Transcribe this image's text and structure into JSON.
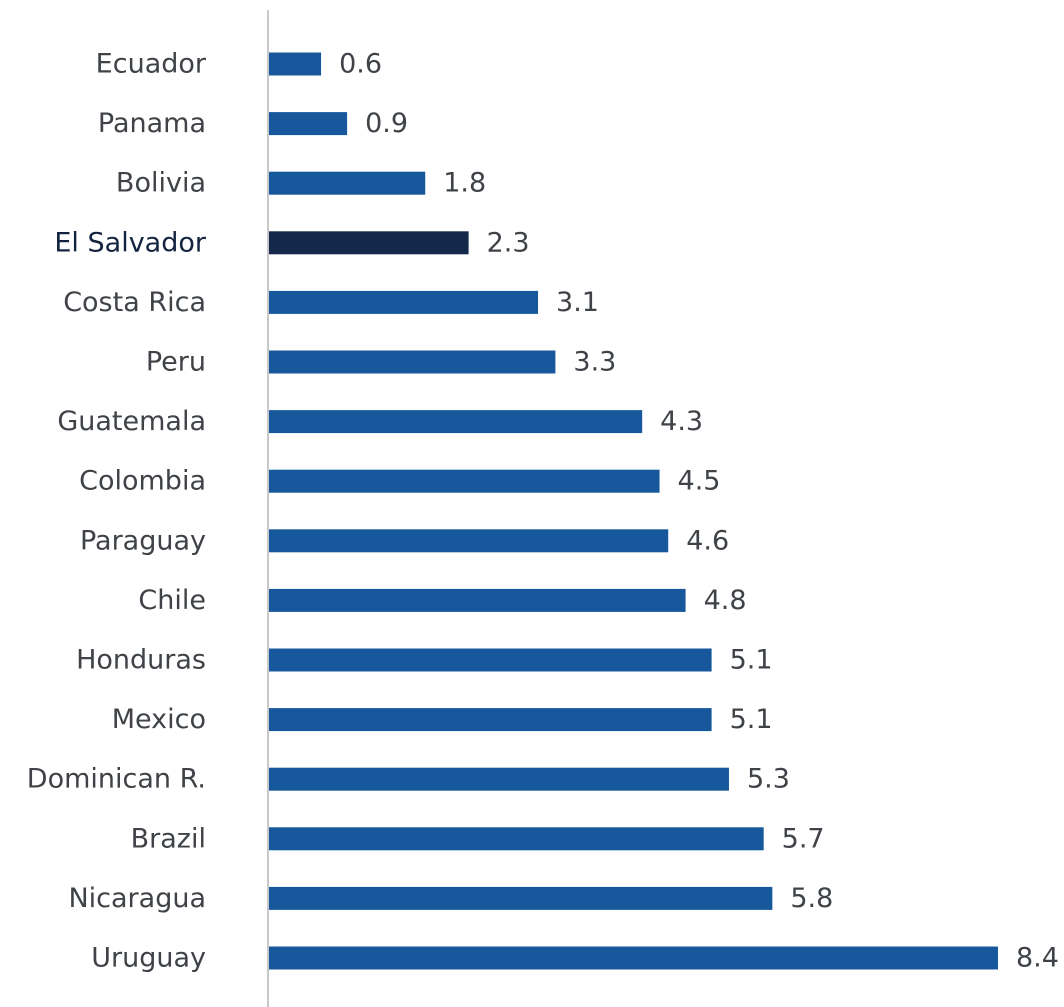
{
  "chart_data": {
    "type": "bar",
    "orientation": "horizontal",
    "categories": [
      "Ecuador",
      "Panama",
      "Bolivia",
      "El Salvador",
      "Costa Rica",
      "Peru",
      "Guatemala",
      "Colombia",
      "Paraguay",
      "Chile",
      "Honduras",
      "Mexico",
      "Dominican R.",
      "Brazil",
      "Nicaragua",
      "Uruguay"
    ],
    "values": [
      0.6,
      0.9,
      1.8,
      2.3,
      3.1,
      3.3,
      4.3,
      4.5,
      4.6,
      4.8,
      5.1,
      5.1,
      5.3,
      5.7,
      5.8,
      8.4
    ],
    "value_labels": [
      "0.6",
      "0.9",
      "1.8",
      "2.3",
      "3.1",
      "3.3",
      "4.3",
      "4.5",
      "4.6",
      "4.8",
      "5.1",
      "5.1",
      "5.3",
      "5.7",
      "5.8",
      "8.4"
    ],
    "highlight_category": "El Salvador",
    "xlim": [
      0,
      8.4
    ],
    "title": "",
    "xlabel": "",
    "ylabel": "",
    "grid": false,
    "legend": "none",
    "colors": {
      "bar": "#17589c",
      "highlight": "#14284c",
      "axis": "#c8c8c8",
      "label": "#3f4347"
    }
  }
}
